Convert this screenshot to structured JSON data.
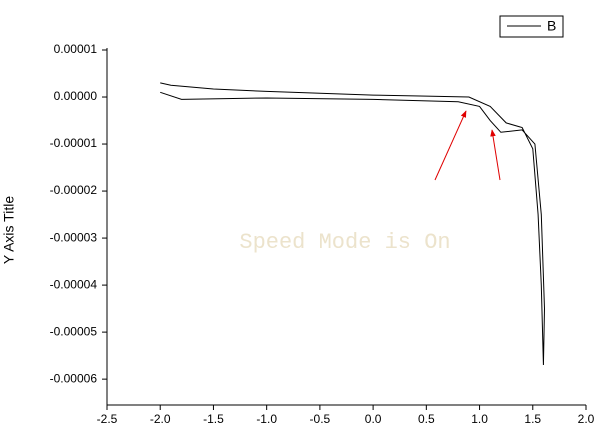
{
  "chart_data": {
    "type": "line",
    "y_label": "Y Axis Title",
    "watermark": "Speed Mode is On",
    "legend": "top-right",
    "xlim": [
      -2.5,
      2.0
    ],
    "ylim": [
      -6.55e-05,
      1e-05
    ],
    "xticks": [
      -2.5,
      {
        "value": -2.0,
        "label": "-2.0"
      },
      -1.5,
      {
        "value": -1.0,
        "label": "-1.0"
      },
      -0.5,
      {
        "value": 0.0,
        "label": "0.0"
      },
      0.5,
      {
        "value": 1.0,
        "label": "1.0"
      },
      1.5,
      {
        "value": 2.0,
        "label": "2.0"
      }
    ],
    "yticks": [
      {
        "value": 1e-05,
        "label": "0.00001"
      },
      {
        "value": 0,
        "label": "0.00000"
      },
      {
        "value": -1e-05,
        "label": "-0.00001"
      },
      {
        "value": -2e-05,
        "label": "-0.00002"
      },
      {
        "value": -3e-05,
        "label": "-0.00003"
      },
      {
        "value": -4e-05,
        "label": "-0.00004"
      },
      {
        "value": -5e-05,
        "label": "-0.00005"
      },
      {
        "value": -6e-05,
        "label": "-0.00006"
      }
    ],
    "x": [
      -2.0,
      -1.9,
      -1.5,
      -1.0,
      -0.5,
      0.0,
      0.5,
      0.9,
      1.1,
      1.25,
      1.4,
      1.5,
      1.55,
      1.58,
      1.6,
      1.61,
      1.58,
      1.52,
      1.4,
      1.2,
      1.1,
      1.0,
      0.8,
      0.0,
      -1.0,
      -1.8,
      -2.0
    ],
    "series": [
      {
        "name": "B",
        "color": "#000000",
        "values": [
          3e-06,
          2.5e-06,
          1.7e-06,
          1.2e-06,
          8e-07,
          4e-07,
          2e-07,
          0.0,
          -2e-06,
          -5.5e-06,
          -6.5e-06,
          -1.1e-05,
          -2.5e-05,
          -4e-05,
          -5.7e-05,
          -4.5e-05,
          -2.5e-05,
          -1e-05,
          -7e-06,
          -7.5e-06,
          -5e-06,
          -2e-06,
          -1e-06,
          -5e-07,
          -2e-07,
          -5e-07,
          1e-06
        ]
      }
    ]
  }
}
